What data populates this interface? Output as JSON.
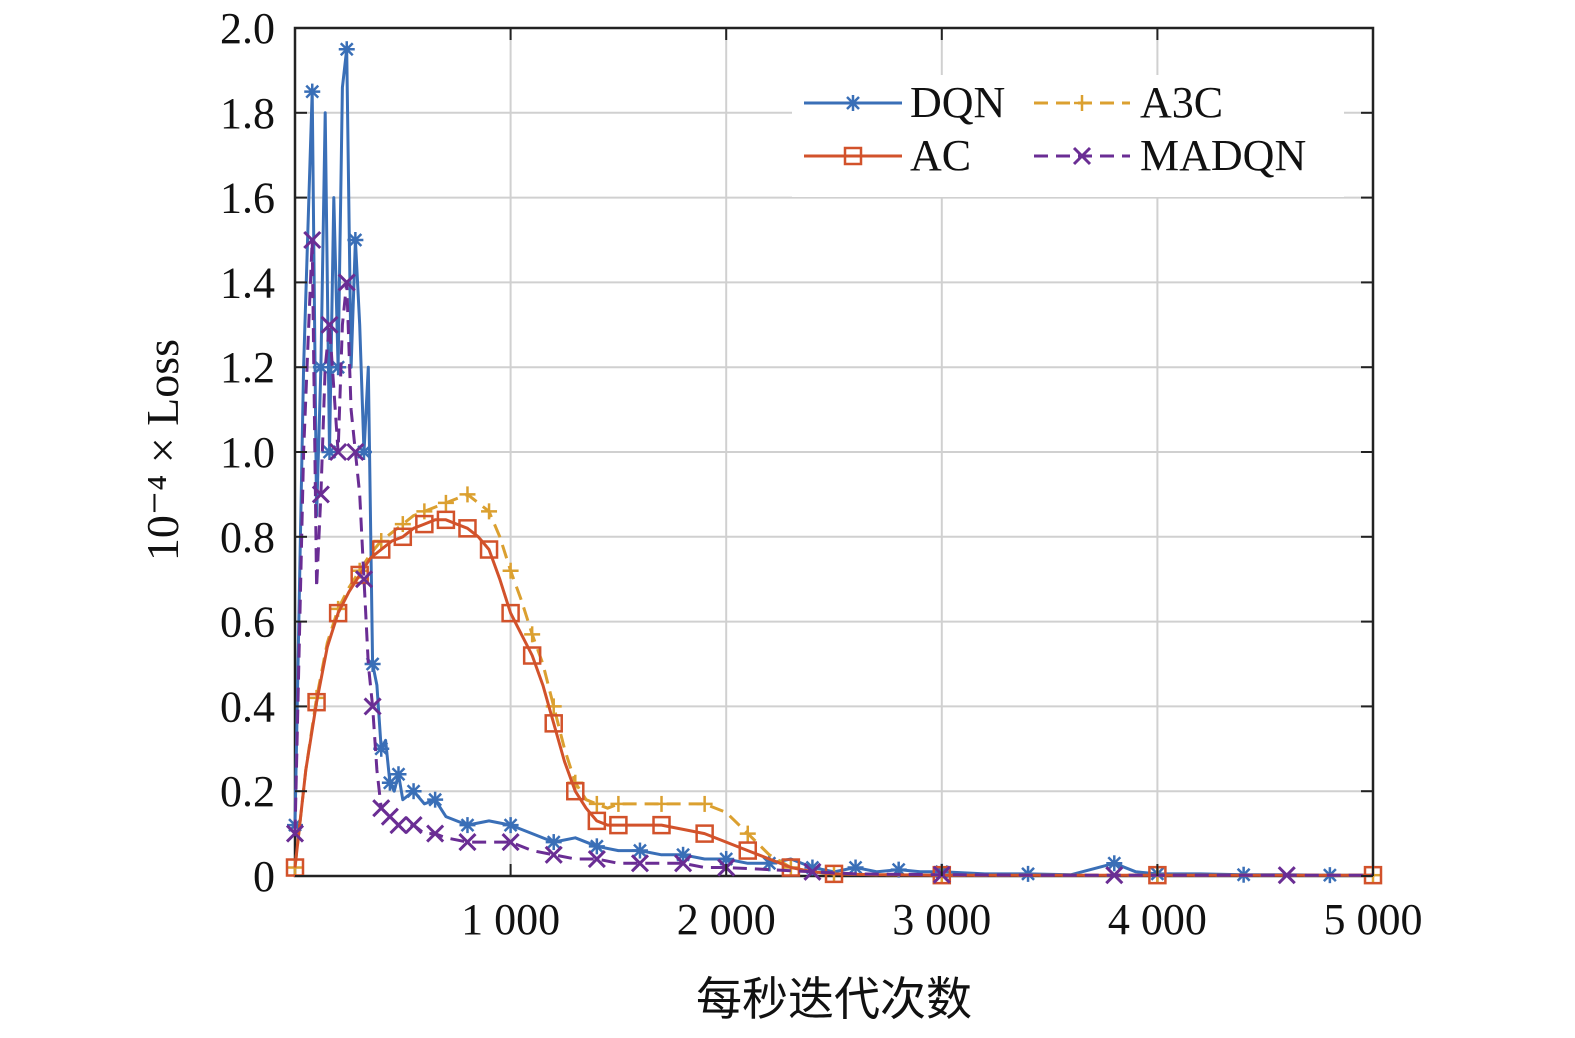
{
  "chart_data": {
    "type": "line",
    "xlabel": "每秒迭代次数",
    "ylabel": "10⁻⁴ × Loss",
    "xlim": [
      0,
      5000
    ],
    "ylim": [
      0,
      2.0
    ],
    "grid": true,
    "legend_position": "top-right",
    "x_ticks": [
      {
        "value": 1000,
        "label": "1 000"
      },
      {
        "value": 2000,
        "label": "2 000"
      },
      {
        "value": 3000,
        "label": "3 000"
      },
      {
        "value": 4000,
        "label": "4 000"
      },
      {
        "value": 5000,
        "label": "5 000"
      }
    ],
    "y_ticks": [
      {
        "value": 0,
        "label": "0"
      },
      {
        "value": 0.2,
        "label": "0.2"
      },
      {
        "value": 0.4,
        "label": "0.4"
      },
      {
        "value": 0.6,
        "label": "0.6"
      },
      {
        "value": 0.8,
        "label": "0.8"
      },
      {
        "value": 1.0,
        "label": "1.0"
      },
      {
        "value": 1.2,
        "label": "1.2"
      },
      {
        "value": 1.4,
        "label": "1.4"
      },
      {
        "value": 1.6,
        "label": "1.6"
      },
      {
        "value": 1.8,
        "label": "1.8"
      },
      {
        "value": 2.0,
        "label": "2.0"
      }
    ],
    "series": [
      {
        "name": "DQN",
        "color": "#3a6fb7",
        "dash": "solid",
        "marker": "asterisk",
        "x": [
          0,
          40,
          80,
          100,
          120,
          140,
          160,
          180,
          200,
          220,
          240,
          260,
          280,
          300,
          320,
          340,
          360,
          380,
          400,
          420,
          440,
          460,
          480,
          500,
          550,
          600,
          650,
          700,
          800,
          900,
          1000,
          1100,
          1200,
          1300,
          1400,
          1500,
          1600,
          1700,
          1800,
          1900,
          2000,
          2100,
          2200,
          2300,
          2400,
          2500,
          2600,
          2700,
          2800,
          2900,
          3000,
          3200,
          3400,
          3600,
          3800,
          3900,
          4000,
          4200,
          4400,
          4600,
          4800,
          5000
        ],
        "y": [
          0.12,
          1.2,
          1.85,
          0.85,
          1.2,
          1.8,
          1.0,
          1.6,
          1.2,
          1.86,
          1.95,
          1.2,
          1.5,
          1.3,
          1.0,
          1.2,
          0.5,
          0.45,
          0.3,
          0.32,
          0.22,
          0.2,
          0.24,
          0.18,
          0.2,
          0.17,
          0.18,
          0.14,
          0.12,
          0.13,
          0.12,
          0.1,
          0.08,
          0.09,
          0.07,
          0.06,
          0.06,
          0.05,
          0.05,
          0.04,
          0.04,
          0.03,
          0.03,
          0.04,
          0.02,
          0.01,
          0.02,
          0.01,
          0.015,
          0.01,
          0.01,
          0.005,
          0.005,
          0.003,
          0.03,
          0.01,
          0.005,
          0.005,
          0.003,
          0.003,
          0.002,
          0.002
        ]
      },
      {
        "name": "A3C",
        "color": "#dba030",
        "dash": "dashed",
        "marker": "plus",
        "x": [
          0,
          50,
          100,
          150,
          200,
          250,
          300,
          350,
          400,
          450,
          500,
          550,
          600,
          650,
          700,
          750,
          800,
          850,
          900,
          950,
          1000,
          1050,
          1100,
          1150,
          1200,
          1250,
          1300,
          1350,
          1400,
          1450,
          1500,
          1600,
          1700,
          1800,
          1900,
          2000,
          2100,
          2200,
          2300,
          2400,
          2500,
          2700,
          3000,
          3500,
          4000,
          4500,
          5000
        ],
        "y": [
          0.02,
          0.25,
          0.42,
          0.55,
          0.63,
          0.68,
          0.72,
          0.76,
          0.79,
          0.81,
          0.83,
          0.85,
          0.86,
          0.87,
          0.88,
          0.89,
          0.9,
          0.88,
          0.86,
          0.8,
          0.72,
          0.65,
          0.57,
          0.5,
          0.4,
          0.3,
          0.22,
          0.18,
          0.17,
          0.16,
          0.17,
          0.17,
          0.17,
          0.17,
          0.17,
          0.15,
          0.1,
          0.05,
          0.02,
          0.01,
          0.005,
          0.003,
          0.002,
          0.002,
          0.002,
          0.002,
          0.002
        ]
      },
      {
        "name": "AC",
        "color": "#d2522b",
        "dash": "solid",
        "marker": "square",
        "x": [
          0,
          50,
          100,
          150,
          200,
          250,
          300,
          350,
          400,
          450,
          500,
          550,
          600,
          650,
          700,
          750,
          800,
          850,
          900,
          950,
          1000,
          1050,
          1100,
          1150,
          1200,
          1250,
          1300,
          1350,
          1400,
          1450,
          1500,
          1600,
          1700,
          1800,
          1900,
          2000,
          2100,
          2200,
          2300,
          2400,
          2500,
          2700,
          3000,
          3500,
          4000,
          4500,
          5000
        ],
        "y": [
          0.02,
          0.25,
          0.41,
          0.54,
          0.62,
          0.67,
          0.71,
          0.75,
          0.77,
          0.79,
          0.8,
          0.82,
          0.83,
          0.84,
          0.84,
          0.83,
          0.82,
          0.8,
          0.77,
          0.7,
          0.62,
          0.57,
          0.52,
          0.45,
          0.36,
          0.27,
          0.2,
          0.16,
          0.13,
          0.12,
          0.12,
          0.12,
          0.12,
          0.11,
          0.1,
          0.08,
          0.06,
          0.04,
          0.02,
          0.01,
          0.005,
          0.003,
          0.002,
          0.002,
          0.002,
          0.002,
          0.002
        ]
      },
      {
        "name": "MADQN",
        "color": "#6a2d94",
        "dash": "dashed",
        "marker": "cross",
        "x": [
          0,
          40,
          80,
          100,
          120,
          140,
          160,
          180,
          200,
          220,
          240,
          260,
          280,
          300,
          320,
          340,
          360,
          380,
          400,
          420,
          440,
          460,
          480,
          500,
          550,
          600,
          650,
          700,
          800,
          900,
          1000,
          1100,
          1200,
          1300,
          1400,
          1500,
          1600,
          1700,
          1800,
          1900,
          2000,
          2200,
          2400,
          2600,
          3000,
          3400,
          3800,
          4200,
          4600,
          5000
        ],
        "y": [
          0.1,
          1.0,
          1.5,
          0.68,
          0.9,
          1.2,
          1.3,
          1.15,
          1.0,
          1.3,
          1.4,
          1.1,
          1.0,
          0.9,
          0.7,
          0.5,
          0.4,
          0.25,
          0.16,
          0.15,
          0.14,
          0.13,
          0.12,
          0.11,
          0.12,
          0.1,
          0.1,
          0.09,
          0.08,
          0.08,
          0.08,
          0.06,
          0.05,
          0.04,
          0.04,
          0.03,
          0.03,
          0.03,
          0.03,
          0.02,
          0.02,
          0.015,
          0.01,
          0.005,
          0.003,
          0.002,
          0.002,
          0.002,
          0.002,
          0.002
        ]
      }
    ]
  }
}
